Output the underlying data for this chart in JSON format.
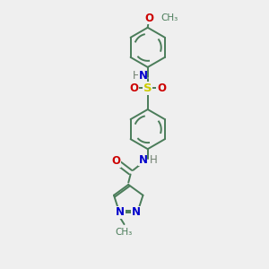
{
  "background_color": "#efefef",
  "bond_color": "#4a7c59",
  "N_color": "#0000cc",
  "O_color": "#cc0000",
  "S_color": "#cccc00",
  "H_color": "#708070",
  "figsize": [
    3.0,
    3.0
  ],
  "dpi": 100,
  "xlim": [
    0,
    10
  ],
  "ylim": [
    0,
    10
  ]
}
